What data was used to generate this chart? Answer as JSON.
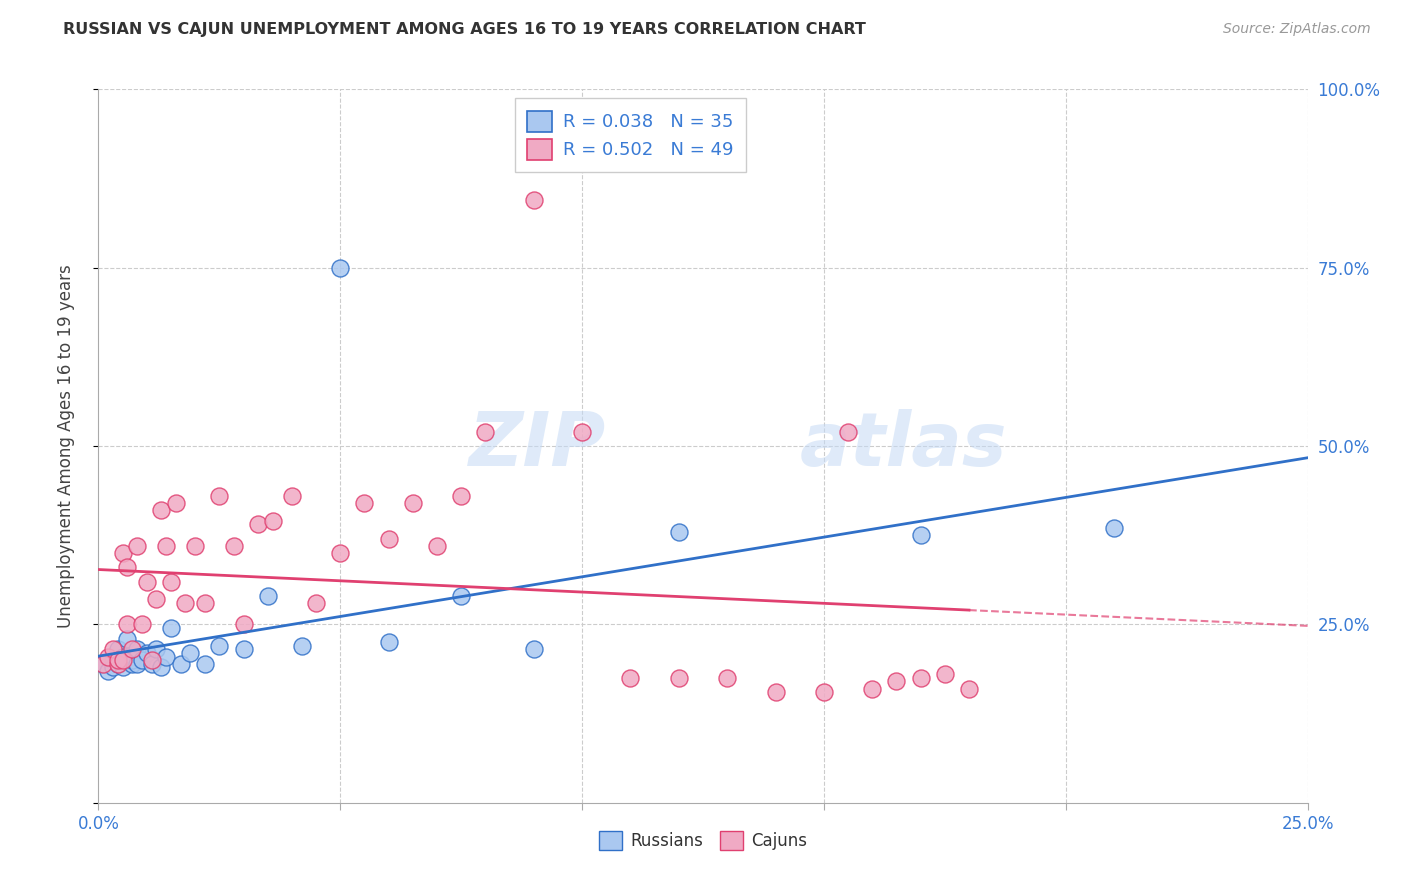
{
  "title": "RUSSIAN VS CAJUN UNEMPLOYMENT AMONG AGES 16 TO 19 YEARS CORRELATION CHART",
  "source": "Source: ZipAtlas.com",
  "ylabel": "Unemployment Among Ages 16 to 19 years",
  "xlim": [
    0,
    0.25
  ],
  "ylim": [
    0,
    1.0
  ],
  "russian_R": 0.038,
  "russian_N": 35,
  "cajun_R": 0.502,
  "cajun_N": 49,
  "russian_color": "#aac8f0",
  "cajun_color": "#f0aac4",
  "russian_line_color": "#3070c8",
  "cajun_line_color": "#e04070",
  "background_color": "#ffffff",
  "grid_color": "#cccccc",
  "watermark_zip": "ZIP",
  "watermark_atlas": "atlas",
  "russians_x": [
    0.001,
    0.002,
    0.003,
    0.003,
    0.004,
    0.004,
    0.005,
    0.005,
    0.006,
    0.006,
    0.007,
    0.007,
    0.008,
    0.008,
    0.009,
    0.01,
    0.011,
    0.012,
    0.013,
    0.014,
    0.015,
    0.017,
    0.019,
    0.022,
    0.025,
    0.03,
    0.035,
    0.042,
    0.05,
    0.06,
    0.075,
    0.09,
    0.12,
    0.17,
    0.21
  ],
  "russians_y": [
    0.195,
    0.185,
    0.2,
    0.19,
    0.195,
    0.215,
    0.19,
    0.205,
    0.2,
    0.23,
    0.195,
    0.2,
    0.215,
    0.195,
    0.2,
    0.21,
    0.195,
    0.215,
    0.19,
    0.205,
    0.245,
    0.195,
    0.21,
    0.195,
    0.22,
    0.215,
    0.29,
    0.22,
    0.75,
    0.225,
    0.29,
    0.215,
    0.38,
    0.375,
    0.385
  ],
  "cajuns_x": [
    0.001,
    0.002,
    0.003,
    0.004,
    0.004,
    0.005,
    0.005,
    0.006,
    0.006,
    0.007,
    0.008,
    0.009,
    0.01,
    0.011,
    0.012,
    0.013,
    0.014,
    0.015,
    0.016,
    0.018,
    0.02,
    0.022,
    0.025,
    0.028,
    0.03,
    0.033,
    0.036,
    0.04,
    0.045,
    0.05,
    0.055,
    0.06,
    0.065,
    0.07,
    0.075,
    0.08,
    0.09,
    0.1,
    0.11,
    0.12,
    0.13,
    0.14,
    0.15,
    0.155,
    0.16,
    0.165,
    0.17,
    0.175,
    0.18
  ],
  "cajuns_y": [
    0.195,
    0.205,
    0.215,
    0.195,
    0.2,
    0.35,
    0.2,
    0.33,
    0.25,
    0.215,
    0.36,
    0.25,
    0.31,
    0.2,
    0.285,
    0.41,
    0.36,
    0.31,
    0.42,
    0.28,
    0.36,
    0.28,
    0.43,
    0.36,
    0.25,
    0.39,
    0.395,
    0.43,
    0.28,
    0.35,
    0.42,
    0.37,
    0.42,
    0.36,
    0.43,
    0.52,
    0.845,
    0.52,
    0.175,
    0.175,
    0.175,
    0.155,
    0.155,
    0.52,
    0.16,
    0.17,
    0.175,
    0.18,
    0.16
  ]
}
